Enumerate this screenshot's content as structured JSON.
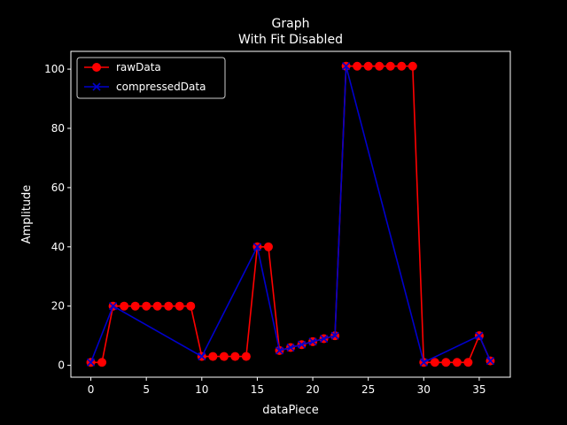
{
  "colors": {
    "background": "#000000",
    "axes": "#ffffff",
    "raw": "#ff0000",
    "compressed": "#0000cc",
    "legend_bg": "#000000",
    "legend_border": "#cccccc"
  },
  "chart_data": {
    "type": "line",
    "title": "Graph",
    "subtitle": "With Fit Disabled",
    "xlabel": "dataPiece",
    "ylabel": "Amplitude",
    "xlim": [
      -1.8,
      37.8
    ],
    "ylim": [
      -4,
      106
    ],
    "xticks": [
      0,
      5,
      10,
      15,
      20,
      25,
      30,
      35
    ],
    "yticks": [
      0,
      20,
      40,
      60,
      80,
      100
    ],
    "grid": false,
    "legend_position": "top-left",
    "series": [
      {
        "name": "rawData",
        "marker": "circle",
        "x": [
          0,
          1,
          2,
          3,
          4,
          5,
          6,
          7,
          8,
          9,
          10,
          11,
          12,
          13,
          14,
          15,
          16,
          17,
          18,
          19,
          20,
          21,
          22,
          23,
          24,
          25,
          26,
          27,
          28,
          29,
          30,
          31,
          32,
          33,
          34,
          35,
          36
        ],
        "y": [
          1,
          1,
          20,
          20,
          20,
          20,
          20,
          20,
          20,
          20,
          3,
          3,
          3,
          3,
          3,
          40,
          40,
          5,
          6,
          7,
          8,
          9,
          10,
          101,
          101,
          101,
          101,
          101,
          101,
          101,
          1,
          1,
          1,
          1,
          1,
          10,
          1.5
        ]
      },
      {
        "name": "compressedData",
        "marker": "x",
        "x": [
          0,
          2,
          10,
          15,
          17,
          18,
          19,
          20,
          21,
          22,
          23,
          30,
          35,
          36
        ],
        "y": [
          1,
          20,
          3,
          40,
          5,
          6,
          7,
          8,
          9,
          10,
          101,
          1,
          10,
          1.5
        ]
      }
    ]
  }
}
